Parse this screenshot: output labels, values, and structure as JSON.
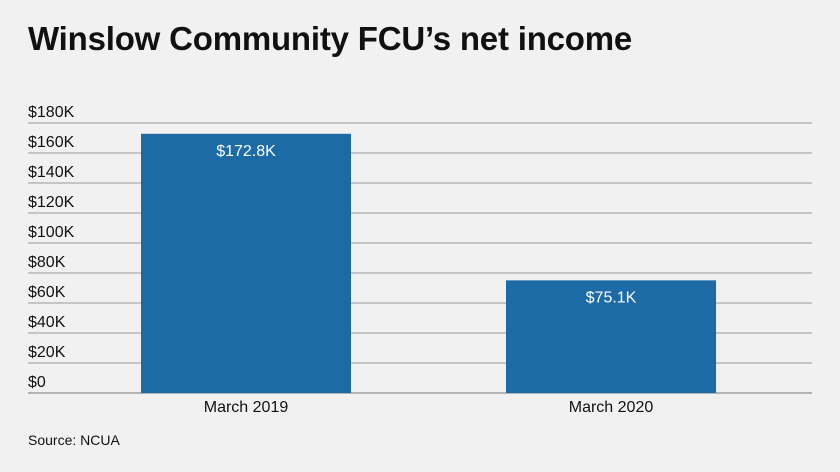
{
  "chart_data": {
    "type": "bar",
    "title": "Winslow Community FCU’s net income",
    "categories": [
      "March 2019",
      "March 2020"
    ],
    "values": [
      172800,
      75100
    ],
    "data_labels": [
      "$172.8K",
      "$75.1K"
    ],
    "y_ticks": [
      0,
      20000,
      40000,
      60000,
      80000,
      100000,
      120000,
      140000,
      160000,
      180000
    ],
    "y_tick_labels": [
      "$0",
      "$20K",
      "$40K",
      "$60K",
      "$80K",
      "$100K",
      "$120K",
      "$140K",
      "$160K",
      "$180K"
    ],
    "ylim": [
      0,
      180000
    ],
    "grid": true,
    "bar_color": "#1c6aa6",
    "source": "Source: NCUA"
  }
}
